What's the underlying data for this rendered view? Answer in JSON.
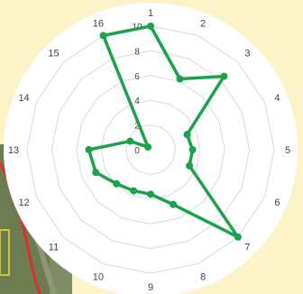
{
  "colors": {
    "background": "#fdf3c9",
    "chart_bg": "#ffffff",
    "series": "#1aa34a",
    "grid": "#d9d9d9",
    "photo_road": "#d9302a",
    "photo_marker": "#e6e02a"
  },
  "chart_data": {
    "type": "radar",
    "title": "",
    "categories": [
      "1",
      "2",
      "3",
      "4",
      "5",
      "6",
      "7",
      "8",
      "9",
      "10",
      "11",
      "12",
      "13",
      "14",
      "15",
      "16"
    ],
    "series": [
      {
        "values": [
          10,
          6.2,
          8.4,
          3.2,
          3.4,
          3.4,
          10,
          4.8,
          3.6,
          3.6,
          3.9,
          4.8,
          5.0,
          1.8,
          0.3,
          10
        ]
      }
    ],
    "rlim": [
      0,
      10
    ],
    "r_ticks": [
      "0",
      "2",
      "4",
      "6",
      "8",
      "10"
    ],
    "grid": true,
    "legend": "none"
  }
}
